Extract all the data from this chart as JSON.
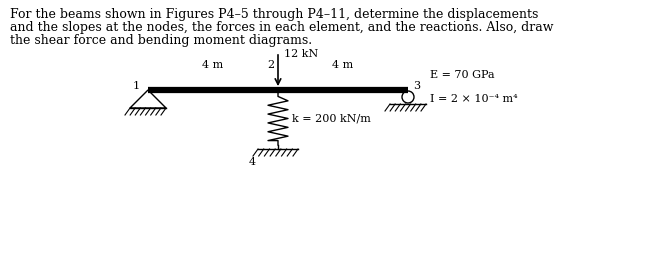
{
  "title_lines": [
    "For the beams shown in Figures P4–5 through P4–11, determine the displacements",
    "and the slopes at the nodes, the forces in each element, and the reactions. Also, draw",
    "the shear force and bending moment diagrams."
  ],
  "beam_color": "#000000",
  "beam_thickness": 4.5,
  "label_4m_left": "4 m",
  "label_4m_right": "4 m",
  "label_node1": "1",
  "label_node2": "2",
  "label_node3": "3",
  "label_node4": "4",
  "load_label": "12 kN",
  "spring_label": "k = 200 kN/m",
  "E_label": "E = 70 GPa",
  "I_label": "I = 2 × 10⁻⁴ m⁴",
  "background_color": "#ffffff",
  "text_color": "#000000",
  "fontsize_title": 9,
  "fontsize_diagram": 8
}
